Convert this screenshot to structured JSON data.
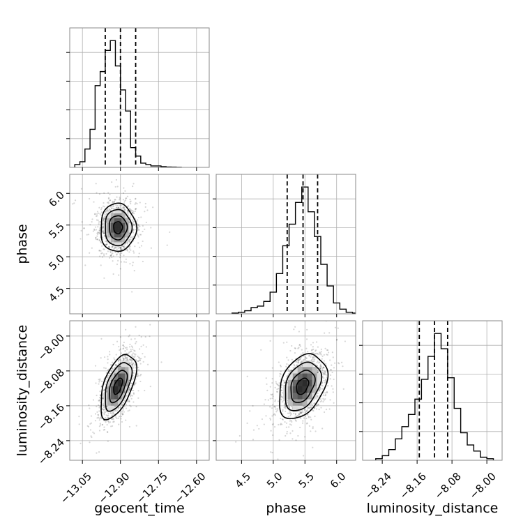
{
  "chart_data": {
    "type": "corner",
    "grid": true,
    "parameters": [
      {
        "name": "geocent_time",
        "label": "geocent_time",
        "range": [
          -13.1,
          -12.55
        ],
        "ticks": [
          -13.05,
          -12.9,
          -12.75,
          -12.6
        ],
        "tick_labels": [
          "−13.05",
          "−12.90",
          "−12.75",
          "−12.60"
        ],
        "quantiles": [
          -12.96,
          -12.9,
          -12.84
        ],
        "histogram": {
          "bin_edges": [
            -13.08,
            -13.06,
            -13.04,
            -13.02,
            -13.0,
            -12.98,
            -12.96,
            -12.94,
            -12.92,
            -12.9,
            -12.88,
            -12.86,
            -12.84,
            -12.82,
            -12.8,
            -12.78,
            -12.76,
            -12.74,
            -12.72,
            -12.7,
            -12.68,
            -12.66
          ],
          "counts": [
            0.02,
            0.04,
            0.13,
            0.27,
            0.58,
            0.68,
            0.83,
            0.9,
            0.72,
            0.55,
            0.4,
            0.14,
            0.08,
            0.03,
            0.02,
            0.01,
            0.01,
            0.005,
            0.003,
            0.002,
            0.001
          ]
        }
      },
      {
        "name": "phase",
        "label": "phase",
        "range": [
          4.1,
          6.3
        ],
        "ticks": [
          4.5,
          5.0,
          5.5,
          6.0
        ],
        "tick_labels": [
          "4.5",
          "5.0",
          "5.5",
          "6.0"
        ],
        "quantiles": [
          5.22,
          5.47,
          5.7
        ],
        "histogram": {
          "bin_edges": [
            4.35,
            4.45,
            4.55,
            4.65,
            4.75,
            4.85,
            4.95,
            5.05,
            5.15,
            5.25,
            5.35,
            5.45,
            5.55,
            5.65,
            5.75,
            5.85,
            5.95,
            6.05,
            6.15,
            6.25,
            6.35
          ],
          "counts": [
            0.005,
            0.01,
            0.02,
            0.04,
            0.05,
            0.08,
            0.14,
            0.26,
            0.44,
            0.58,
            0.72,
            0.82,
            0.66,
            0.5,
            0.32,
            0.18,
            0.07,
            0.03,
            0.01,
            0.005
          ]
        }
      },
      {
        "name": "luminosity_distance",
        "label": "luminosity_distance",
        "range": [
          -8.285,
          -7.965
        ],
        "ticks": [
          -8.24,
          -8.16,
          -8.08,
          -8.0
        ],
        "tick_labels": [
          "−8.24",
          "−8.16",
          "−8.08",
          "−8.00"
        ],
        "quantiles": [
          -8.155,
          -8.12,
          -8.09
        ],
        "histogram": {
          "bin_edges": [
            -8.255,
            -8.24,
            -8.225,
            -8.21,
            -8.195,
            -8.18,
            -8.165,
            -8.15,
            -8.135,
            -8.12,
            -8.105,
            -8.09,
            -8.075,
            -8.06,
            -8.045,
            -8.03,
            -8.015,
            -8.0,
            -7.985
          ],
          "counts": [
            0.01,
            0.03,
            0.07,
            0.14,
            0.22,
            0.3,
            0.4,
            0.53,
            0.68,
            0.83,
            0.73,
            0.54,
            0.34,
            0.18,
            0.1,
            0.06,
            0.02,
            0.01
          ]
        }
      }
    ],
    "pairs": [
      {
        "x": "geocent_time",
        "y": "phase",
        "mean": [
          -12.91,
          5.46
        ],
        "sigma": [
          0.035,
          0.19
        ],
        "rho": 0.0
      },
      {
        "x": "geocent_time",
        "y": "luminosity_distance",
        "mean": [
          -12.91,
          -8.115
        ],
        "sigma": [
          0.035,
          0.037
        ],
        "rho": 0.55
      },
      {
        "x": "phase",
        "y": "luminosity_distance",
        "mean": [
          5.46,
          -8.115
        ],
        "sigma": [
          0.19,
          0.037
        ],
        "rho": 0.35
      }
    ],
    "contour_levels": [
      0.5,
      1.0,
      1.5,
      2.0
    ]
  }
}
